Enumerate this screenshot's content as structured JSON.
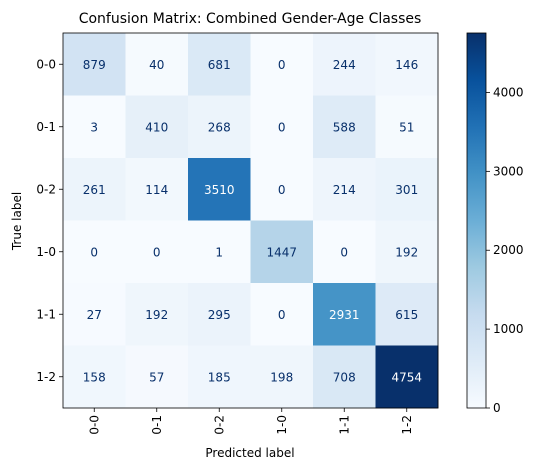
{
  "chart_data": {
    "type": "heatmap",
    "title": "Confusion Matrix: Combined Gender-Age Classes",
    "xlabel": "Predicted label",
    "ylabel": "True label",
    "x_categories": [
      "0-0",
      "0-1",
      "0-2",
      "1-0",
      "1-1",
      "1-2"
    ],
    "y_categories": [
      "0-0",
      "0-1",
      "0-2",
      "1-0",
      "1-1",
      "1-2"
    ],
    "values": [
      [
        879,
        40,
        681,
        0,
        244,
        146
      ],
      [
        3,
        410,
        268,
        0,
        588,
        51
      ],
      [
        261,
        114,
        3510,
        0,
        214,
        301
      ],
      [
        0,
        0,
        1,
        1447,
        0,
        192
      ],
      [
        27,
        192,
        295,
        0,
        2931,
        615
      ],
      [
        158,
        57,
        185,
        198,
        708,
        4754
      ]
    ],
    "colormap": "Blues",
    "vmin": 0,
    "vmax": 4754,
    "colorbar_ticks": [
      0,
      1000,
      2000,
      3000,
      4000
    ],
    "text_color_light": "#ffffff",
    "text_color_dark": "#08306b"
  }
}
